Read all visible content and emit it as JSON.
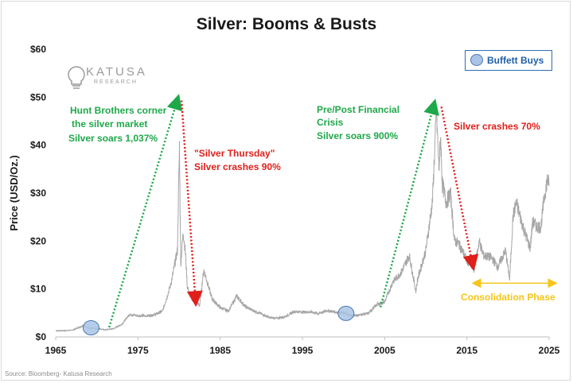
{
  "title": "Silver: Booms & Busts",
  "source": "Source: Bloomberg- Katusa Research",
  "logo": {
    "name": "KATUSA",
    "sub": "RESEARCH"
  },
  "legend": {
    "label": "Buffett Buys",
    "marker_color": "#a9c4e6"
  },
  "annotations": {
    "hunt_line1": "Hunt Brothers corner",
    "hunt_line2": "the silver market",
    "hunt_line3": "Silver soars 1,037%",
    "thursday_line1": "\"Silver Thursday\"",
    "thursday_line2": "Silver crashes 90%",
    "gfc_line1": "Pre/Post Financial",
    "gfc_line2": "Crisis",
    "gfc_line3": "Silver soars 900%",
    "crash70": "Silver crashes 70%",
    "consolidation": "Consolidation Phase"
  },
  "colors": {
    "green": "#1fa84a",
    "red": "#e0201b",
    "yellow": "#f5c518",
    "series": "#a6a6a6"
  },
  "chart_data": {
    "type": "line",
    "title": "Silver: Booms & Busts",
    "ylabel": "Price (USD/Oz.)",
    "xlabel": "",
    "xlim": [
      1965,
      2025
    ],
    "ylim": [
      0,
      60
    ],
    "x_ticks": [
      "1965",
      "1975",
      "1985",
      "1995",
      "2005",
      "2015",
      "2025"
    ],
    "y_ticks": [
      "$0",
      "$10",
      "$20",
      "$30",
      "$40",
      "$50",
      "$60"
    ],
    "grid": false,
    "series": [
      {
        "values": [
          [
            1965,
            1.3
          ],
          [
            1966,
            1.29
          ],
          [
            1967,
            1.4
          ],
          [
            1968,
            2.1
          ],
          [
            1968.5,
            2.4
          ],
          [
            1969,
            1.8
          ],
          [
            1970,
            1.75
          ],
          [
            1971,
            1.5
          ],
          [
            1972,
            1.7
          ],
          [
            1973,
            2.6
          ],
          [
            1974,
            4.7
          ],
          [
            1975,
            4.4
          ],
          [
            1976,
            4.4
          ],
          [
            1977,
            4.6
          ],
          [
            1978,
            5.4
          ],
          [
            1979,
            11.0
          ],
          [
            1979.8,
            18.0
          ],
          [
            1980.05,
            40.0
          ],
          [
            1980.2,
            15.0
          ],
          [
            1980.5,
            22.0
          ],
          [
            1980.8,
            17.0
          ],
          [
            1981,
            10.5
          ],
          [
            1981.5,
            8.0
          ],
          [
            1982,
            7.5
          ],
          [
            1982.5,
            6.5
          ],
          [
            1983,
            14.0
          ],
          [
            1983.5,
            11.0
          ],
          [
            1984,
            8.0
          ],
          [
            1985,
            6.1
          ],
          [
            1986,
            5.4
          ],
          [
            1987,
            8.5
          ],
          [
            1987.5,
            7.5
          ],
          [
            1988,
            6.4
          ],
          [
            1989,
            5.5
          ],
          [
            1990,
            4.8
          ],
          [
            1991,
            4.0
          ],
          [
            1992,
            3.9
          ],
          [
            1993,
            4.3
          ],
          [
            1994,
            5.3
          ],
          [
            1995,
            5.2
          ],
          [
            1996,
            5.2
          ],
          [
            1997,
            4.9
          ],
          [
            1998,
            5.5
          ],
          [
            1999,
            5.2
          ],
          [
            2000,
            5.0
          ],
          [
            2001,
            4.4
          ],
          [
            2002,
            4.6
          ],
          [
            2003,
            4.9
          ],
          [
            2004,
            6.7
          ],
          [
            2005,
            7.3
          ],
          [
            2006,
            11.5
          ],
          [
            2007,
            13.4
          ],
          [
            2008,
            17.0
          ],
          [
            2008.8,
            9.5
          ],
          [
            2009,
            12.0
          ],
          [
            2010,
            18.0
          ],
          [
            2010.8,
            28.0
          ],
          [
            2011.3,
            47.0
          ],
          [
            2011.6,
            35.0
          ],
          [
            2011.8,
            42.0
          ],
          [
            2012,
            32.0
          ],
          [
            2012.5,
            28.0
          ],
          [
            2013,
            30.0
          ],
          [
            2013.5,
            20.0
          ],
          [
            2014,
            19.5
          ],
          [
            2015,
            16.0
          ],
          [
            2015.9,
            14.0
          ],
          [
            2016.5,
            20.0
          ],
          [
            2017,
            17.0
          ],
          [
            2018,
            16.5
          ],
          [
            2018.8,
            14.5
          ],
          [
            2019,
            15.5
          ],
          [
            2019.7,
            18.0
          ],
          [
            2020.2,
            12.0
          ],
          [
            2020.6,
            25.0
          ],
          [
            2021,
            28.0
          ],
          [
            2021.5,
            25.0
          ],
          [
            2022,
            22.0
          ],
          [
            2022.7,
            18.5
          ],
          [
            2023,
            24.0
          ],
          [
            2023.5,
            23.0
          ],
          [
            2024,
            23.0
          ],
          [
            2024.4,
            29.0
          ],
          [
            2024.8,
            33.0
          ],
          [
            2025,
            31.5
          ]
        ]
      }
    ],
    "buffett_buys": [
      [
        1969.3,
        1.9
      ],
      [
        2000.3,
        4.9
      ]
    ],
    "arrows": [
      {
        "from": [
          1971.5,
          2.0
        ],
        "to": [
          1979.8,
          49.5
        ],
        "color": "green"
      },
      {
        "from": [
          1980.3,
          49.3
        ],
        "to": [
          1982.0,
          7.5
        ],
        "color": "red"
      },
      {
        "from": [
          2004.5,
          6.2
        ],
        "to": [
          2011.0,
          48.5
        ],
        "color": "green"
      },
      {
        "from": [
          2011.9,
          48.0
        ],
        "to": [
          2015.7,
          15.0
        ],
        "color": "red"
      }
    ],
    "range_arrow": {
      "from": 2016.0,
      "to": 2026.0,
      "y": 11.2,
      "color": "yellow"
    }
  }
}
